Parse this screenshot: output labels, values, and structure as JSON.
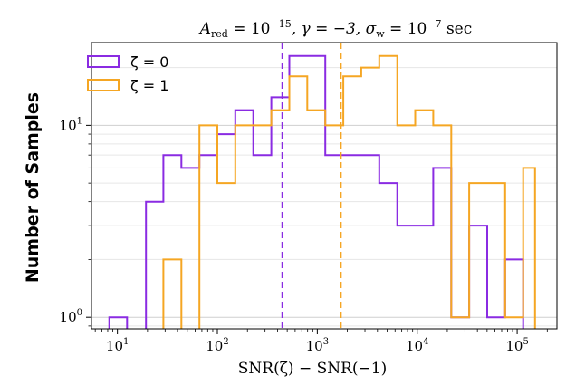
{
  "chart_data": {
    "type": "histogram",
    "title": "A_red = 10^-15, γ = -3, σ_w = 10^-7 sec",
    "title_parts": {
      "a_symbol": "A",
      "a_sub": "red",
      "eq1": " = 10",
      "a_exp": "−15",
      "gamma_part": ", γ = −3, σ",
      "sigma_sub": "w",
      "eq2": " = 10",
      "sigma_exp": "−7",
      "unit": " sec"
    },
    "xlabel": "SNR(ζ) − SNR(−1)",
    "ylabel": "Number of Samples",
    "x_scale": "log",
    "y_scale": "log",
    "xlim": [
      5.5,
      250000.0
    ],
    "ylim": [
      0.87,
      27
    ],
    "x_ticks": [
      {
        "value": 10,
        "base": "10",
        "exp": "1"
      },
      {
        "value": 100,
        "base": "10",
        "exp": "2"
      },
      {
        "value": 1000,
        "base": "10",
        "exp": "3"
      },
      {
        "value": 10000,
        "base": "10",
        "exp": "4"
      },
      {
        "value": 100000,
        "base": "10",
        "exp": "5"
      }
    ],
    "y_ticks": [
      {
        "value": 1,
        "base": "10",
        "exp": "0"
      },
      {
        "value": 10,
        "base": "10",
        "exp": "1"
      }
    ],
    "grid": "horizontal",
    "legend_position": "top-left",
    "series": [
      {
        "name": "ζ = 0",
        "color": "#8a2be2",
        "bin_edges": [
          8.3,
          12.5,
          19.3,
          28.8,
          43.7,
          66.1,
          100,
          151,
          229,
          347,
          525,
          794,
          1202,
          1820,
          2754,
          4169,
          6310,
          9550,
          14450,
          21880,
          33110,
          50120,
          75860,
          114800,
          151000
        ],
        "counts": [
          1,
          0,
          4,
          7,
          6,
          7,
          9,
          12,
          7,
          14,
          23,
          23,
          7,
          7,
          7,
          5,
          3,
          3,
          6,
          1,
          3,
          1,
          2,
          0
        ],
        "vline": 447
      },
      {
        "name": "ζ = 1",
        "color": "#f5a623",
        "bin_edges": [
          8.3,
          12.5,
          19.3,
          28.8,
          43.7,
          66.1,
          100,
          151,
          229,
          347,
          525,
          794,
          1202,
          1820,
          2754,
          4169,
          6310,
          9550,
          14450,
          21880,
          33110,
          50120,
          75860,
          114800,
          151000
        ],
        "counts": [
          0,
          0,
          0,
          2,
          0,
          10,
          5,
          10,
          10,
          12,
          18,
          12,
          10,
          18,
          20,
          23,
          10,
          12,
          10,
          1,
          5,
          5,
          1,
          6
        ],
        "vline": 1720
      }
    ]
  }
}
